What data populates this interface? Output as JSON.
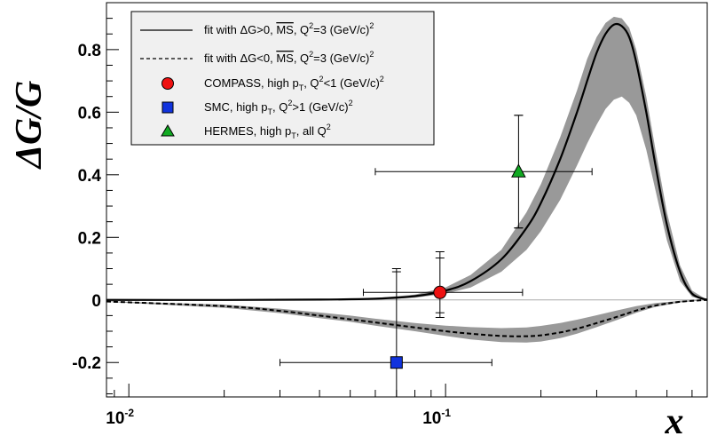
{
  "chart_data": {
    "type": "line",
    "xscale": "log",
    "xlim": [
      0.0085,
      0.67
    ],
    "ylim": [
      -0.31,
      0.95
    ],
    "xlabel": "x",
    "ylabel": "ΔG/G",
    "x_ticks": [
      {
        "value": 0.01,
        "base": "10",
        "exp": "-2"
      },
      {
        "value": 0.1,
        "base": "10",
        "exp": "-1"
      }
    ],
    "y_ticks": [
      {
        "value": -0.2,
        "label": "-0.2"
      },
      {
        "value": 0,
        "label": "0"
      },
      {
        "value": 0.2,
        "label": "0.2"
      },
      {
        "value": 0.4,
        "label": "0.4"
      },
      {
        "value": 0.6,
        "label": "0.6"
      },
      {
        "value": 0.8,
        "label": "0.8"
      }
    ],
    "fit_positive": {
      "x": [
        0.0085,
        0.02,
        0.04,
        0.06,
        0.08,
        0.1,
        0.12,
        0.15,
        0.18,
        0.2,
        0.23,
        0.26,
        0.28,
        0.3,
        0.32,
        0.34,
        0.36,
        0.38,
        0.4,
        0.43,
        0.46,
        0.5,
        0.55,
        0.6,
        0.67
      ],
      "y": [
        0,
        0,
        0.001,
        0.004,
        0.012,
        0.03,
        0.06,
        0.13,
        0.23,
        0.31,
        0.45,
        0.6,
        0.7,
        0.79,
        0.85,
        0.88,
        0.875,
        0.84,
        0.76,
        0.6,
        0.43,
        0.24,
        0.09,
        0.02,
        0
      ],
      "band_low": [
        0,
        0,
        0,
        0.002,
        0.007,
        0.02,
        0.04,
        0.09,
        0.16,
        0.22,
        0.32,
        0.43,
        0.5,
        0.56,
        0.61,
        0.64,
        0.65,
        0.63,
        0.59,
        0.48,
        0.35,
        0.19,
        0.06,
        0.01,
        0
      ],
      "band_high": [
        0,
        0,
        0.002,
        0.006,
        0.017,
        0.04,
        0.08,
        0.16,
        0.28,
        0.37,
        0.52,
        0.67,
        0.77,
        0.84,
        0.885,
        0.905,
        0.9,
        0.87,
        0.8,
        0.65,
        0.48,
        0.28,
        0.11,
        0.03,
        0
      ]
    },
    "fit_negative": {
      "x": [
        0.0085,
        0.02,
        0.03,
        0.04,
        0.05,
        0.06,
        0.08,
        0.1,
        0.12,
        0.15,
        0.18,
        0.2,
        0.23,
        0.26,
        0.3,
        0.35,
        0.4,
        0.46,
        0.55,
        0.67
      ],
      "y": [
        -0.005,
        -0.02,
        -0.035,
        -0.05,
        -0.062,
        -0.072,
        -0.088,
        -0.1,
        -0.108,
        -0.115,
        -0.116,
        -0.113,
        -0.104,
        -0.092,
        -0.074,
        -0.053,
        -0.034,
        -0.018,
        -0.006,
        0
      ],
      "band_low": [
        -0.006,
        -0.025,
        -0.042,
        -0.058,
        -0.07,
        -0.082,
        -0.1,
        -0.115,
        -0.126,
        -0.135,
        -0.136,
        -0.133,
        -0.122,
        -0.108,
        -0.087,
        -0.063,
        -0.041,
        -0.022,
        -0.008,
        0
      ],
      "band_high": [
        -0.004,
        -0.015,
        -0.028,
        -0.04,
        -0.05,
        -0.06,
        -0.074,
        -0.082,
        -0.087,
        -0.09,
        -0.088,
        -0.083,
        -0.074,
        -0.063,
        -0.049,
        -0.033,
        -0.02,
        -0.01,
        -0.003,
        0
      ]
    },
    "points": [
      {
        "name": "COMPASS",
        "shape": "circle",
        "color": "#ee1111",
        "x": 0.096,
        "y": 0.024,
        "xerr": [
          0.055,
          0.175
        ],
        "yerr_stat": [
          -0.065,
          0.11
        ],
        "yerr_tot": [
          -0.08,
          0.13
        ]
      },
      {
        "name": "SMC",
        "shape": "square",
        "color": "#1133dd",
        "x": 0.07,
        "y": -0.2,
        "xerr": [
          0.03,
          0.14
        ],
        "yerr_stat": [
          -0.5,
          0.09
        ],
        "yerr_tot": [
          -0.5,
          0.1
        ]
      },
      {
        "name": "HERMES",
        "shape": "triangle",
        "color": "#11aa22",
        "x": 0.17,
        "y": 0.41,
        "xerr": [
          0.06,
          0.29
        ],
        "yerr_stat": [
          0.23,
          0.59
        ],
        "yerr_tot": [
          0.23,
          0.59
        ]
      }
    ]
  },
  "legend": {
    "fit_pos": {
      "a": "fit with ",
      "b": "ΔG>0, ",
      "ms": "MS",
      "c": ", Q",
      "c_sup": "2",
      "d": "=3 (GeV/c)",
      "d_sup": "2"
    },
    "fit_neg": {
      "a": "fit with ",
      "b": "ΔG<0, ",
      "ms": "MS",
      "c": ", Q",
      "c_sup": "2",
      "d": "=3 (GeV/c)",
      "d_sup": "2"
    },
    "compass": {
      "a": "COMPASS, high p",
      "a_sub": "T",
      "b": ", Q",
      "b_sup": "2",
      "c": "<1 (GeV/c)",
      "c_sup": "2"
    },
    "smc": {
      "a": "SMC, high p",
      "a_sub": "T",
      "b": ", Q",
      "b_sup": "2",
      "c": ">1 (GeV/c)",
      "c_sup": "2"
    },
    "hermes": {
      "a": "HERMES, high p",
      "a_sub": "T",
      "b": ", all Q",
      "b_sup": "2"
    }
  },
  "colors": {
    "band": "#999999",
    "compass": "#ee1111",
    "smc": "#1133dd",
    "hermes": "#11aa22",
    "legend_bg": "#f0f0f0"
  }
}
